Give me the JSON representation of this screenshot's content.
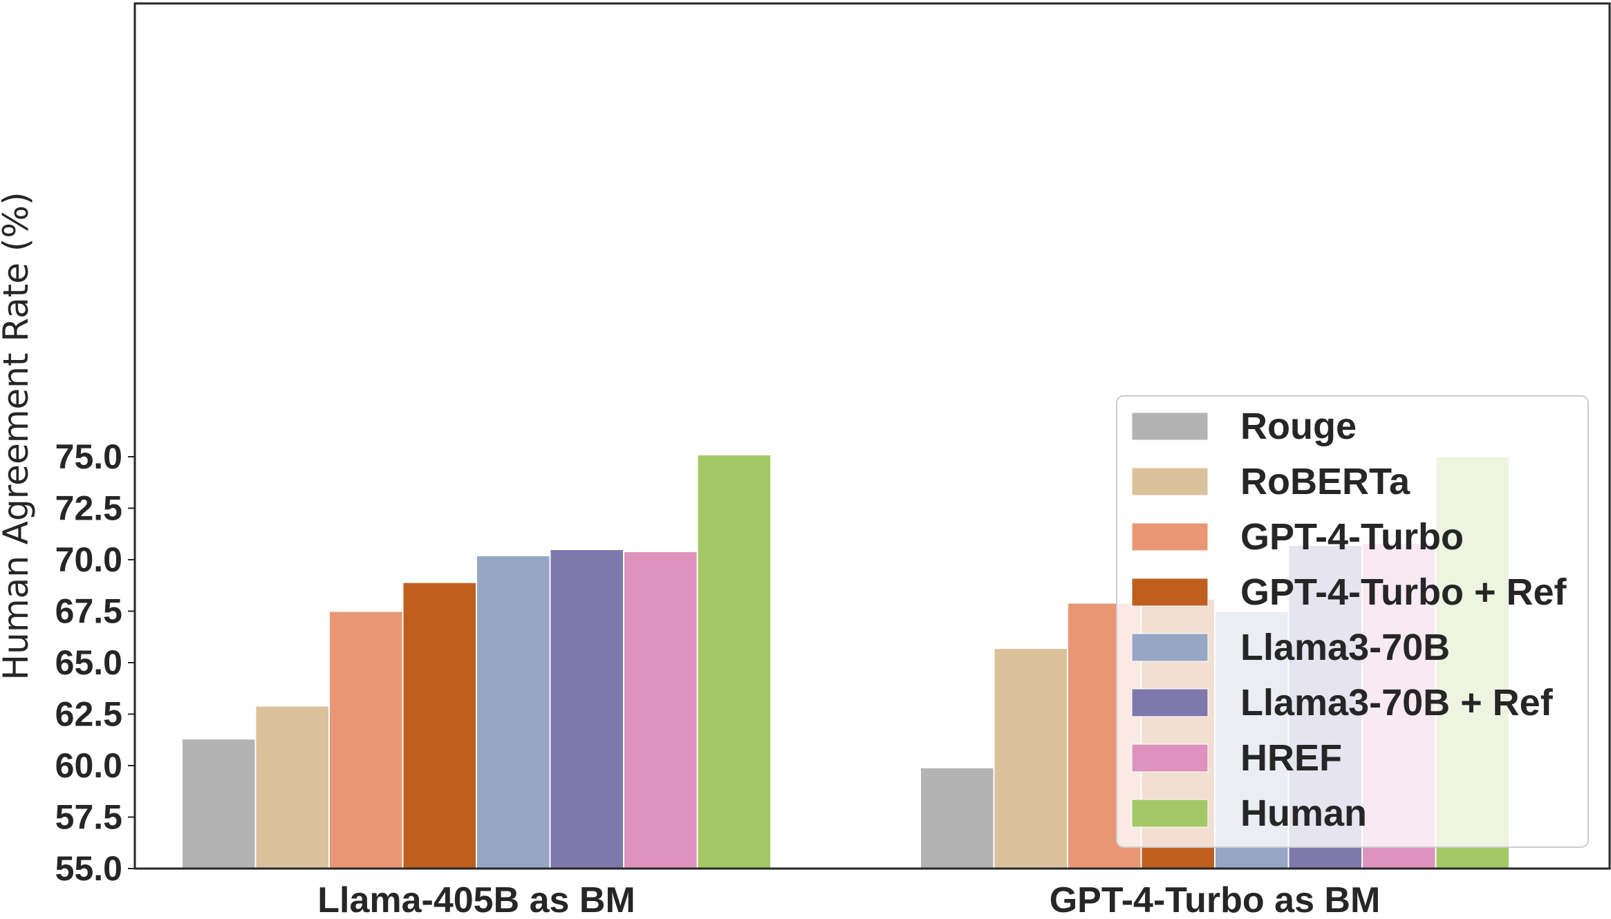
{
  "chart_data": {
    "type": "bar",
    "ylabel": "Human Agreement Rate (%)",
    "xlabel": "",
    "ylim": [
      55.0,
      76.0
    ],
    "yticks": [
      "55.0",
      "57.5",
      "60.0",
      "62.5",
      "65.0",
      "67.5",
      "70.0",
      "72.5",
      "75.0"
    ],
    "grid": false,
    "legend_position": "lower-right",
    "categories": [
      "Llama-405B as BM",
      "GPT-4-Turbo as BM"
    ],
    "series": [
      {
        "name": "Rouge",
        "color": "#b3b3b3",
        "values": [
          61.3,
          59.9
        ]
      },
      {
        "name": "RoBERTa",
        "color": "#dbc29c",
        "values": [
          62.9,
          65.7
        ]
      },
      {
        "name": "GPT-4-Turbo",
        "color": "#e99675",
        "values": [
          67.5,
          67.9
        ]
      },
      {
        "name": "GPT-4-Turbo + Ref",
        "color": "#bf5f1f",
        "values": [
          68.9,
          68.1
        ]
      },
      {
        "name": "Llama3-70B",
        "color": "#97a6c4",
        "values": [
          70.2,
          67.5
        ]
      },
      {
        "name": "Llama3-70B + Ref",
        "color": "#7e78ad",
        "values": [
          70.5,
          70.7
        ]
      },
      {
        "name": "HREF",
        "color": "#dd93be",
        "values": [
          70.4,
          70.8
        ]
      },
      {
        "name": "Human",
        "color": "#a4c865",
        "values": [
          75.1,
          75.0
        ]
      }
    ]
  }
}
